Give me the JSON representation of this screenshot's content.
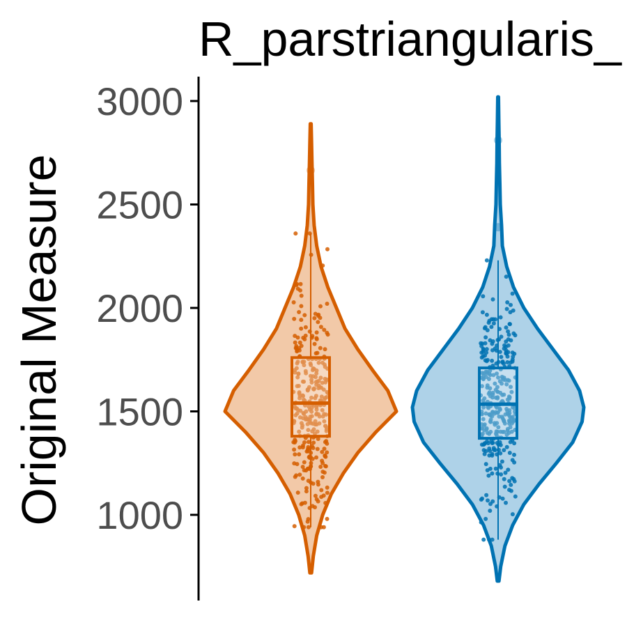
{
  "chart_data": {
    "type": "violin",
    "title": "R_parstriangularis_",
    "xlabel": "",
    "ylabel": "Original Measure",
    "ylim": [
      680,
      3120
    ],
    "yticks": [
      1000,
      1500,
      2000,
      2500,
      3000
    ],
    "ytick_labels": [
      "1000",
      "1500",
      "2000",
      "2500",
      "3000"
    ],
    "grid": false,
    "legend": "none",
    "series": [
      {
        "color": "#d55e00",
        "fill": "#f2c9a8",
        "min": 720,
        "max": 2890,
        "q1": 1380,
        "median": 1540,
        "q3": 1760,
        "whisker_low": 940,
        "whisker_high": 2360,
        "outliers": [
          2665
        ],
        "points_count": 320,
        "density": [
          [
            720,
            0.01
          ],
          [
            800,
            0.03
          ],
          [
            900,
            0.07
          ],
          [
            1000,
            0.14
          ],
          [
            1100,
            0.24
          ],
          [
            1200,
            0.38
          ],
          [
            1300,
            0.55
          ],
          [
            1400,
            0.76
          ],
          [
            1500,
            1.0
          ],
          [
            1600,
            0.9
          ],
          [
            1700,
            0.72
          ],
          [
            1800,
            0.55
          ],
          [
            1900,
            0.4
          ],
          [
            2000,
            0.3
          ],
          [
            2100,
            0.2
          ],
          [
            2200,
            0.12
          ],
          [
            2300,
            0.07
          ],
          [
            2400,
            0.04
          ],
          [
            2500,
            0.025
          ],
          [
            2600,
            0.02
          ],
          [
            2700,
            0.015
          ],
          [
            2800,
            0.01
          ],
          [
            2890,
            0.005
          ]
        ]
      },
      {
        "color": "#0072b2",
        "fill": "#aed2e8",
        "min": 680,
        "max": 3020,
        "q1": 1370,
        "median": 1535,
        "q3": 1710,
        "whisker_low": 880,
        "whisker_high": 2230,
        "outliers": [
          2810,
          2390
        ],
        "points_count": 330,
        "density": [
          [
            680,
            0.01
          ],
          [
            750,
            0.03
          ],
          [
            850,
            0.08
          ],
          [
            950,
            0.17
          ],
          [
            1050,
            0.3
          ],
          [
            1150,
            0.48
          ],
          [
            1250,
            0.68
          ],
          [
            1350,
            0.87
          ],
          [
            1450,
            0.98
          ],
          [
            1520,
            1.0
          ],
          [
            1600,
            0.95
          ],
          [
            1700,
            0.82
          ],
          [
            1800,
            0.64
          ],
          [
            1900,
            0.46
          ],
          [
            2000,
            0.3
          ],
          [
            2100,
            0.18
          ],
          [
            2200,
            0.1
          ],
          [
            2300,
            0.05
          ],
          [
            2400,
            0.04
          ],
          [
            2500,
            0.025
          ],
          [
            2600,
            0.02
          ],
          [
            2700,
            0.015
          ],
          [
            2800,
            0.012
          ],
          [
            2900,
            0.008
          ],
          [
            3020,
            0.004
          ]
        ]
      }
    ]
  }
}
